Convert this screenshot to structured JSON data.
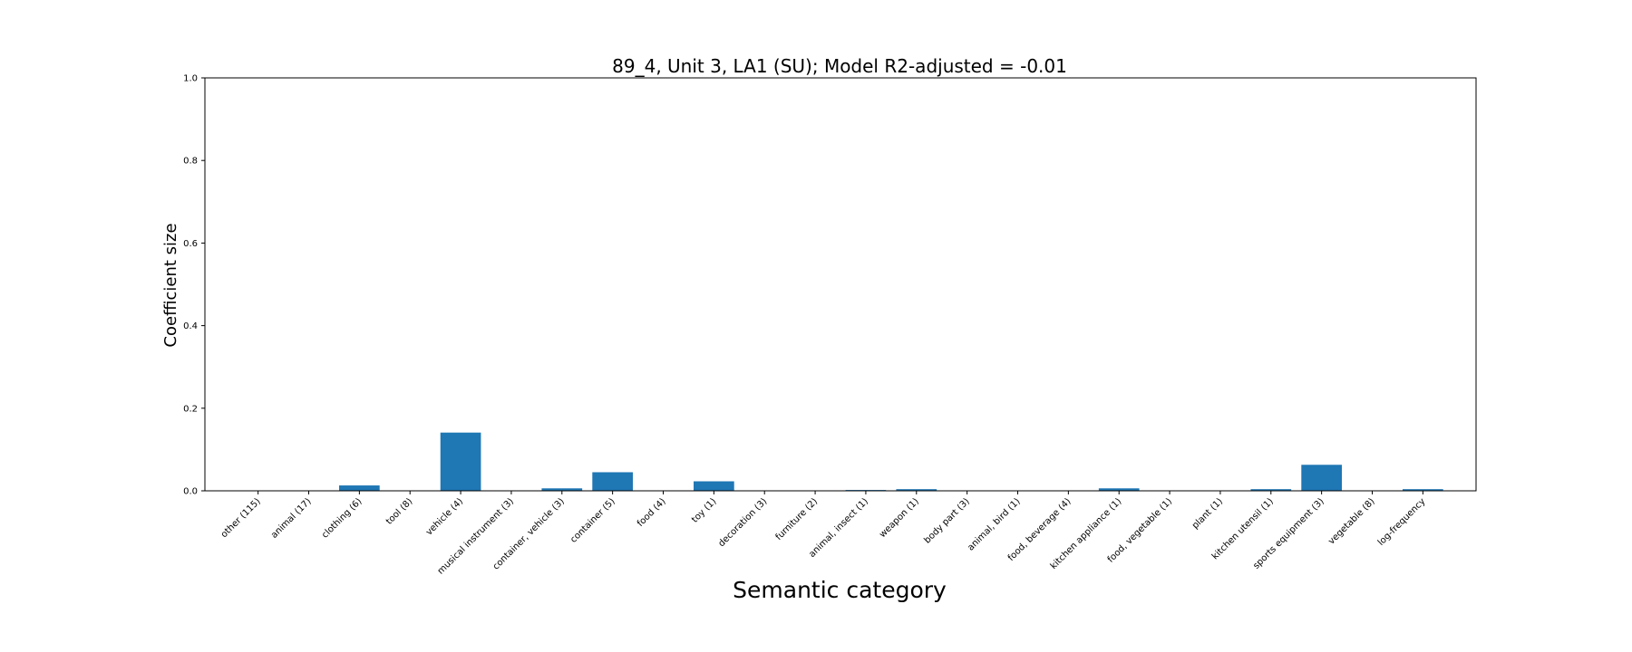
{
  "chart_data": {
    "type": "bar",
    "title": "89_4, Unit 3, LA1 (SU); Model R2-adjusted = -0.01",
    "xlabel": "Semantic category",
    "ylabel": "Coefficient size",
    "ylim": [
      0,
      1.0
    ],
    "yticks": [
      "0.0",
      "0.2",
      "0.4",
      "0.6",
      "0.8",
      "1.0"
    ],
    "grid": false,
    "bar_color": "#1f77b4",
    "categories": [
      "other (115)",
      "animal (17)",
      "clothing (6)",
      "tool (8)",
      "vehicle (4)",
      "musical instrument (3)",
      "container, vehicle (3)",
      "container (5)",
      "food (4)",
      "toy (1)",
      "decoration (3)",
      "furniture (2)",
      "animal, insect (1)",
      "weapon (1)",
      "body part (3)",
      "animal, bird (1)",
      "food, beverage (4)",
      "kitchen appliance (1)",
      "food, vegetable (1)",
      "plant (1)",
      "kitchen utensil (1)",
      "sports equipment (3)",
      "vegetable (8)",
      "log-frequency"
    ],
    "values": [
      0,
      0,
      0.013,
      0,
      0.141,
      0,
      0.006,
      0.045,
      0,
      0.023,
      0,
      0,
      0.002,
      0.004,
      0,
      0,
      0,
      0.006,
      0,
      0,
      0.004,
      0.063,
      0,
      0.004
    ]
  }
}
